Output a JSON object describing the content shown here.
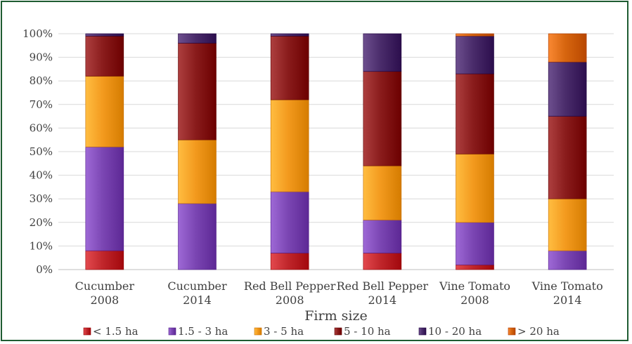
{
  "chart_data": {
    "type": "bar",
    "stacked": true,
    "percent": true,
    "categories": [
      [
        "Cucumber",
        "2008"
      ],
      [
        "Cucumber",
        "2014"
      ],
      [
        "Red Bell Pepper",
        "2008"
      ],
      [
        "Red Bell Pepper",
        "2014"
      ],
      [
        "Vine Tomato",
        "2008"
      ],
      [
        "Vine Tomato",
        "2014"
      ]
    ],
    "xlabel": "Firm size",
    "ylabel": "",
    "ylim": [
      0,
      100
    ],
    "yticks": [
      "0%",
      "10%",
      "20%",
      "30%",
      "40%",
      "50%",
      "60%",
      "70%",
      "80%",
      "90%",
      "100%"
    ],
    "grid": true,
    "legend_position": "bottom",
    "series": [
      {
        "name": "< 1.5 ha",
        "color": "#c0262b",
        "values": [
          8,
          0,
          7,
          7,
          2,
          0
        ]
      },
      {
        "name": "1.5 - 3 ha",
        "color": "#7b46b3",
        "values": [
          44,
          28,
          26,
          14,
          18,
          8
        ]
      },
      {
        "name": "3 - 5 ha",
        "color": "#f39a1e",
        "values": [
          30,
          27,
          39,
          23,
          29,
          22
        ]
      },
      {
        "name": "5 - 10 ha",
        "color": "#8a1c1c",
        "values": [
          17,
          41,
          27,
          40,
          34,
          35
        ]
      },
      {
        "name": "10 - 20 ha",
        "color": "#4a2c6b",
        "values": [
          1,
          4,
          1,
          16,
          16,
          23
        ]
      },
      {
        "name": "> 20 ha",
        "color": "#d6650f",
        "values": [
          0,
          0,
          0,
          0,
          1,
          12
        ]
      }
    ]
  }
}
